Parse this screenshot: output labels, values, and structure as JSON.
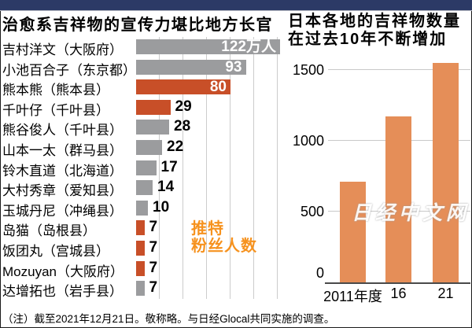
{
  "colors": {
    "header_bar": "#2C3A66",
    "bar_gray": "#9B9C9E",
    "bar_red": "#C84F28",
    "bar_orange_right": "#E58E58",
    "annotation_orange": "#F6921E",
    "gridline": "#CCCCCC"
  },
  "left_chart": {
    "title": "治愈系吉祥物的宣传力堪比地方长官",
    "annotation_line1": "推特",
    "annotation_line2": "粉丝人数"
  },
  "right_chart": {
    "title_line1": "日本各地的吉祥物数量",
    "title_line2": "在过去10年不断增加"
  },
  "watermark": "日经中文网",
  "footer_note": "（注）截至2021年12月21日。敬称略。与日经Glocal共同实施的调查。",
  "chart_data": [
    {
      "type": "bar",
      "orientation": "horizontal",
      "title": "治愈系吉祥物的宣传力堪比地方长官",
      "value_unit": "万人",
      "annotation": "推特粉丝人数",
      "categories": [
        "吉村洋文（大阪府）",
        "小池百合子（东京都）",
        "熊本熊（熊本县）",
        "千叶仔（千叶县）",
        "熊谷俊人（千叶县）",
        "山本一太（群马县）",
        "铃木直道（北海道）",
        "大村秀章（爱知县）",
        "玉城丹尼（冲绳县）",
        "岛猫（岛根县）",
        "饭团丸（宫城县）",
        "Mozuyan（大阪府）",
        "达增拓也（岩手县）"
      ],
      "values": [
        122,
        93,
        80,
        29,
        28,
        22,
        17,
        14,
        10,
        7,
        7,
        7,
        7
      ],
      "value_labels": [
        "122万人",
        "93",
        "80",
        "29",
        "28",
        "22",
        "17",
        "14",
        "10",
        "7",
        "7",
        "7",
        "7"
      ],
      "bar_types": [
        "governor",
        "governor",
        "mascot",
        "mascot",
        "governor",
        "governor",
        "governor",
        "governor",
        "governor",
        "mascot",
        "mascot",
        "mascot",
        "governor"
      ],
      "xlim": [
        0,
        122
      ],
      "grid": true
    },
    {
      "type": "bar",
      "title": "日本各地的吉祥物数量在过去10年不断增加",
      "categories": [
        "2011年度",
        "16",
        "21"
      ],
      "values": [
        710,
        1170,
        1550
      ],
      "yticks": [
        0,
        500,
        1000,
        1500
      ],
      "ylim": [
        0,
        1600
      ],
      "grid": true,
      "legend_position": "none"
    }
  ]
}
